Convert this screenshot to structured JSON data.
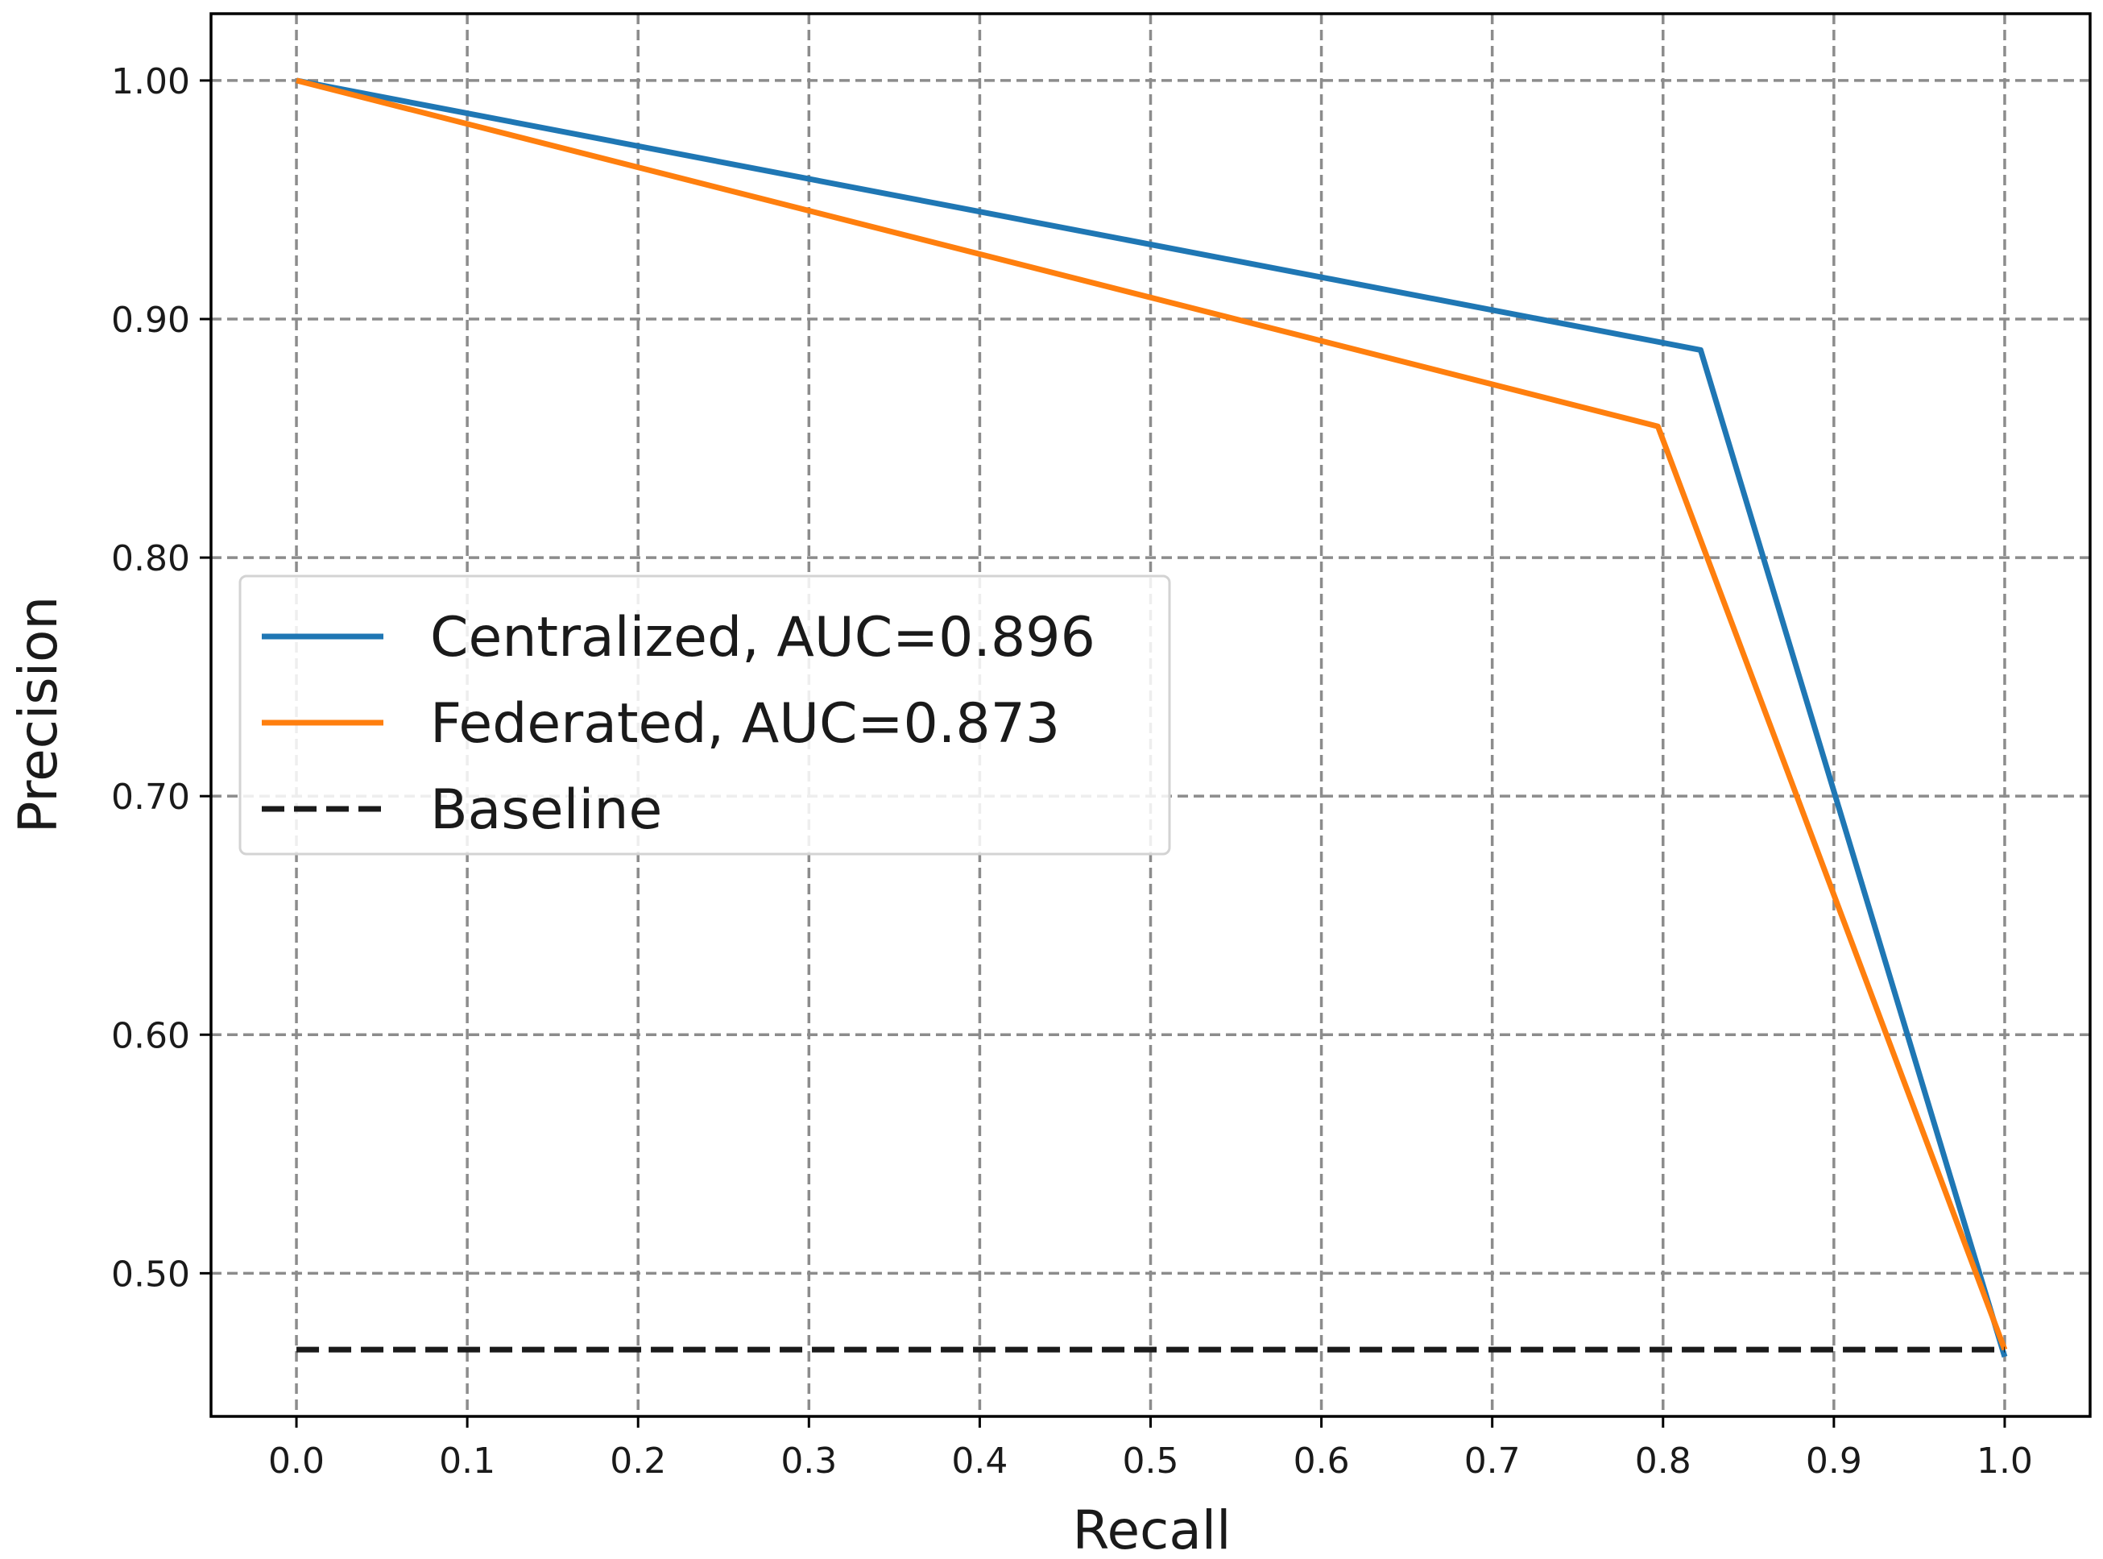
{
  "chart_data": {
    "type": "line",
    "title": "",
    "xlabel": "Recall",
    "ylabel": "Precision",
    "xlim": [
      -0.05,
      1.05
    ],
    "ylim": [
      0.44,
      1.028
    ],
    "xticks": [
      0.0,
      0.1,
      0.2,
      0.3,
      0.4,
      0.5,
      0.6,
      0.7,
      0.8,
      0.9,
      1.0
    ],
    "xtick_labels": [
      "0.0",
      "0.1",
      "0.2",
      "0.3",
      "0.4",
      "0.5",
      "0.6",
      "0.7",
      "0.8",
      "0.9",
      "1.0"
    ],
    "yticks": [
      0.5,
      0.6,
      0.7,
      0.8,
      0.9,
      1.0
    ],
    "ytick_labels": [
      "0.50",
      "0.60",
      "0.70",
      "0.80",
      "0.90",
      "1.00"
    ],
    "grid": true,
    "legend_position": "center-left",
    "series": [
      {
        "name": "Centralized, AUC=0.896",
        "color": "#1f77b4",
        "style": "solid",
        "x": [
          0.0,
          0.822,
          1.0
        ],
        "y": [
          1.0,
          0.887,
          0.465
        ]
      },
      {
        "name": "Federated, AUC=0.873",
        "color": "#ff7f0e",
        "style": "solid",
        "x": [
          0.0,
          0.797,
          1.0
        ],
        "y": [
          1.0,
          0.855,
          0.468
        ]
      },
      {
        "name": "Baseline",
        "color": "#1a1a1a",
        "style": "dashed",
        "x": [
          0.0,
          1.0
        ],
        "y": [
          0.468,
          0.468
        ]
      }
    ]
  }
}
